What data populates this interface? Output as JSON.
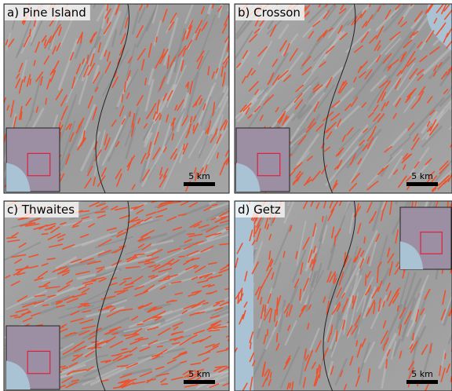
{
  "panels": [
    {
      "label": "a) Pine Island",
      "scale": "5 km"
    },
    {
      "label": "b) Crosson",
      "scale": "5 km"
    },
    {
      "label": "c) Thwaites",
      "scale": "5 km"
    },
    {
      "label": "d) Getz",
      "scale": "5 km"
    }
  ]
}
